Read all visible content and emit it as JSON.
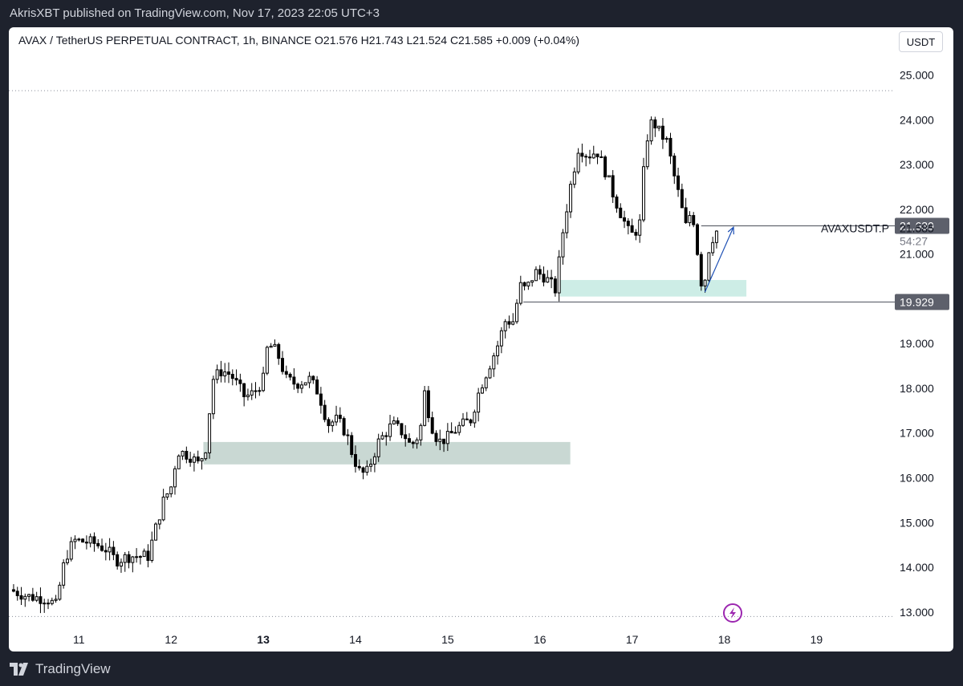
{
  "publisher_line": "AkrisXBT published on TradingView.com, Nov 17, 2023 22:05 UTC+3",
  "header": {
    "title": "AVAX / TetherUS PERPETUAL CONTRACT, 1h, BINANCE  O21.576  H21.743  L21.524  C21.585  +0.009 (+0.04%)",
    "currency": "USDT"
  },
  "footer": {
    "brand": "TradingView"
  },
  "colors": {
    "candle": "#000000",
    "zone": "#b2c8c0",
    "zone_top": "#b8e6dc",
    "arrow": "#1e50b4",
    "flash": "#9c27b0"
  },
  "icons": {
    "logo": "tradingview-logo-icon",
    "flash": "lightning-icon"
  },
  "chart_data": {
    "type": "candlestick",
    "symbol": "AVAXUSDT.P",
    "timeframe": "1h",
    "ylim": [
      12.8,
      25.35
    ],
    "y_ticks": [
      "25.000",
      "24.000",
      "23.000",
      "22.000",
      "21.000",
      "20.000",
      "19.000",
      "18.000",
      "17.000",
      "16.000",
      "15.000",
      "14.000",
      "13.000"
    ],
    "y_tick_values": [
      25,
      24,
      23,
      22,
      21,
      20,
      19,
      18,
      17,
      16,
      15,
      14,
      13
    ],
    "x_ticks": [
      "11",
      "12",
      "13",
      "14",
      "15",
      "16",
      "17",
      "18",
      "19"
    ],
    "x_tick_days": [
      11,
      12,
      13,
      14,
      15,
      16,
      17,
      18,
      19
    ],
    "x_tick_bold": [
      "13"
    ],
    "xlim_days": [
      10.24,
      20.25
    ],
    "last_price": {
      "label": "AVAXUSDT.P",
      "value": "21.585",
      "countdown": "54:27"
    },
    "price_tags": [
      {
        "value": "21.630",
        "y": 21.63
      },
      {
        "value": "19.929",
        "y": 19.929
      }
    ],
    "horizontal_lines": [
      {
        "y": 21.63,
        "from_day": 17.75,
        "style": "solid"
      },
      {
        "y": 19.929,
        "from_day": 15.82,
        "style": "solid"
      },
      {
        "y": 24.65,
        "from_day": 10.24,
        "style": "dotted"
      },
      {
        "y": 12.9,
        "from_day": 10.24,
        "style": "dotted"
      }
    ],
    "zones": [
      {
        "name": "demand-zone-lower",
        "x_days": [
          12.35,
          16.33
        ],
        "y_range": [
          16.3,
          16.8
        ],
        "color": "#b2c8c0"
      },
      {
        "name": "demand-zone-upper",
        "x_days": [
          16.22,
          18.24
        ],
        "y_range": [
          20.05,
          20.42
        ],
        "color": "#b8e6dc"
      }
    ],
    "arrow": {
      "from": [
        17.79,
        20.15
      ],
      "to": [
        18.1,
        21.6
      ]
    },
    "close_path": [
      [
        10.25,
        13.5
      ],
      [
        10.45,
        13.35
      ],
      [
        10.65,
        13.3
      ],
      [
        10.75,
        13.15
      ],
      [
        10.85,
        14.2
      ],
      [
        10.95,
        14.6
      ],
      [
        11.15,
        14.55
      ],
      [
        11.3,
        14.4
      ],
      [
        11.4,
        14.15
      ],
      [
        11.55,
        14.25
      ],
      [
        11.75,
        14.25
      ],
      [
        11.85,
        15.0
      ],
      [
        11.92,
        15.5
      ],
      [
        12.0,
        15.8
      ],
      [
        12.07,
        16.6
      ],
      [
        12.2,
        16.5
      ],
      [
        12.3,
        16.3
      ],
      [
        12.38,
        16.7
      ],
      [
        12.45,
        18.2
      ],
      [
        12.55,
        18.4
      ],
      [
        12.65,
        18.3
      ],
      [
        12.8,
        17.8
      ],
      [
        12.9,
        17.9
      ],
      [
        13.0,
        18.2
      ],
      [
        13.05,
        19.0
      ],
      [
        13.15,
        18.8
      ],
      [
        13.25,
        18.2
      ],
      [
        13.35,
        18.1
      ],
      [
        13.5,
        18.2
      ],
      [
        13.6,
        17.9
      ],
      [
        13.7,
        17.2
      ],
      [
        13.8,
        17.3
      ],
      [
        13.9,
        17.0
      ],
      [
        13.97,
        16.5
      ],
      [
        14.05,
        16.1
      ],
      [
        14.12,
        16.1
      ],
      [
        14.25,
        16.8
      ],
      [
        14.4,
        17.2
      ],
      [
        14.52,
        17.0
      ],
      [
        14.6,
        16.7
      ],
      [
        14.7,
        17.0
      ],
      [
        14.75,
        17.9
      ],
      [
        14.82,
        17.2
      ],
      [
        14.9,
        16.8
      ],
      [
        15.0,
        16.9
      ],
      [
        15.1,
        17.1
      ],
      [
        15.25,
        17.3
      ],
      [
        15.35,
        18.0
      ],
      [
        15.45,
        18.5
      ],
      [
        15.55,
        19.0
      ],
      [
        15.62,
        19.5
      ],
      [
        15.72,
        19.5
      ],
      [
        15.78,
        20.3
      ],
      [
        15.85,
        20.2
      ],
      [
        15.95,
        20.6
      ],
      [
        16.05,
        20.5
      ],
      [
        16.17,
        20.2
      ],
      [
        16.25,
        21.5
      ],
      [
        16.32,
        22.4
      ],
      [
        16.42,
        23.4
      ],
      [
        16.52,
        23.2
      ],
      [
        16.62,
        23.3
      ],
      [
        16.72,
        22.8
      ],
      [
        16.8,
        22.3
      ],
      [
        16.9,
        21.8
      ],
      [
        16.98,
        21.4
      ],
      [
        17.08,
        21.6
      ],
      [
        17.15,
        23.5
      ],
      [
        17.22,
        24.0
      ],
      [
        17.3,
        23.7
      ],
      [
        17.38,
        23.5
      ],
      [
        17.45,
        22.8
      ],
      [
        17.52,
        22.2
      ],
      [
        17.58,
        21.6
      ],
      [
        17.63,
        21.9
      ],
      [
        17.68,
        21.7
      ],
      [
        17.72,
        20.8
      ],
      [
        17.77,
        20.1
      ],
      [
        17.83,
        21.1
      ],
      [
        17.88,
        21.4
      ],
      [
        17.94,
        21.58
      ]
    ]
  }
}
